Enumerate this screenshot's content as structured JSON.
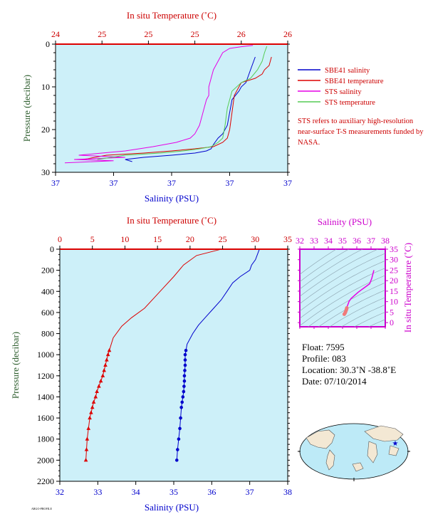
{
  "colors": {
    "background": "#cdf0f9",
    "salinity": "#0000cc",
    "temperature": "#dd0000",
    "sts_salinity": "#e600e6",
    "sts_temperature": "#55cc55",
    "ts_axis": "#cc00cc",
    "pressure_label": "#2e5e2e"
  },
  "info": {
    "float": "Float:  7595",
    "profile": "Profile:  083",
    "location": "Location:  30.3˚N  -38.8˚E",
    "date": "Date:  07/10/2014"
  },
  "note": "STS refers to auxiliary high-resolution near-surface T-S measurements funded by NASA.",
  "chart_data": [
    {
      "type": "line",
      "ylabel": "Pressure (decibar)",
      "xlabel": "Salinity (PSU)",
      "x2label": "In situ Temperature (˚C)",
      "ylim": [
        30,
        0
      ],
      "yticks": [
        "0",
        "10",
        "20",
        "30"
      ],
      "xticks": [
        "37",
        "37",
        "37",
        "37",
        "37"
      ],
      "x2ticks": [
        "24",
        "25",
        "25",
        "25",
        "26",
        "26"
      ],
      "xlim": [
        0,
        1
      ],
      "legend": [
        "SBE41 salinity",
        "SBE41 temperature",
        "STS salinity",
        "STS temperature"
      ],
      "series": [
        {
          "name": "SBE41 salinity",
          "color": "#0000cc",
          "x": [
            0.86,
            0.84,
            0.82,
            0.8,
            0.79,
            0.76,
            0.75,
            0.74,
            0.72,
            0.7,
            0.68,
            0.67,
            0.65,
            0.6,
            0.5,
            0.38,
            0.3,
            0.33
          ],
          "y": [
            3,
            6,
            9,
            10,
            11,
            13,
            16,
            19,
            21,
            22,
            23.5,
            24.5,
            25,
            25.5,
            26,
            26.5,
            27,
            27.5
          ]
        },
        {
          "name": "SBE41 temperature",
          "color": "#dd0000",
          "x": [
            0.93,
            0.92,
            0.9,
            0.89,
            0.86,
            0.8,
            0.77,
            0.76,
            0.75,
            0.74,
            0.72,
            0.68,
            0.6,
            0.5,
            0.38,
            0.22,
            0.12
          ],
          "y": [
            3,
            5,
            6,
            7,
            8,
            9,
            12,
            16,
            20,
            22,
            23,
            24,
            24.5,
            25,
            25.5,
            26,
            27
          ]
        },
        {
          "name": "STS salinity",
          "color": "#e600e6",
          "x": [
            0.85,
            0.8,
            0.75,
            0.72,
            0.7,
            0.68,
            0.67,
            0.66,
            0.66,
            0.65,
            0.64,
            0.63,
            0.62,
            0.6,
            0.58,
            0.52,
            0.42,
            0.3,
            0.2,
            0.1,
            0.3,
            0.08,
            0.25,
            0.04
          ],
          "y": [
            0.3,
            0.6,
            1,
            2,
            4,
            6,
            8,
            10,
            12,
            13,
            15,
            17,
            19,
            21,
            22,
            23,
            24,
            25,
            25.5,
            26,
            26.5,
            27,
            27.3,
            27.8
          ]
        },
        {
          "name": "STS temperature",
          "color": "#55cc55",
          "x": [
            0.91,
            0.9,
            0.89,
            0.87,
            0.84,
            0.8,
            0.76,
            0.74,
            0.73,
            0.72,
            0.7,
            0.67,
            0.62,
            0.55,
            0.45,
            0.3,
            0.18
          ],
          "y": [
            0.5,
            2,
            4,
            6,
            8,
            9,
            11,
            15,
            19,
            22,
            23,
            24,
            24.5,
            25,
            25.5,
            26,
            27
          ]
        }
      ]
    },
    {
      "type": "line",
      "ylabel": "Pressure (decibar)",
      "xlabel": "Salinity (PSU)",
      "x2label": "In situ Temperature (˚C)",
      "xlim": [
        32,
        38
      ],
      "x2lim": [
        0,
        35
      ],
      "ylim": [
        2200,
        0
      ],
      "xticks": [
        "32",
        "33",
        "34",
        "35",
        "36",
        "37",
        "38"
      ],
      "x2ticks": [
        "0",
        "5",
        "10",
        "15",
        "20",
        "25",
        "30",
        "35"
      ],
      "yticks": [
        "0",
        "200",
        "400",
        "600",
        "800",
        "1000",
        "1200",
        "1400",
        "1600",
        "1800",
        "2000",
        "2200"
      ],
      "series": [
        {
          "name": "Salinity",
          "color": "#0000cc",
          "x": [
            37.25,
            37.15,
            37.05,
            37.0,
            36.75,
            36.55,
            36.4,
            36.25,
            36.05,
            35.85,
            35.65,
            35.5,
            35.35,
            35.32,
            35.3,
            35.3,
            35.3,
            35.29,
            35.28,
            35.28,
            35.27,
            35.26,
            35.24,
            35.22,
            35.2,
            35.18,
            35.16,
            35.13,
            35.1,
            35.08
          ],
          "y": [
            5,
            100,
            150,
            200,
            260,
            320,
            400,
            480,
            560,
            640,
            720,
            800,
            900,
            960,
            1000,
            1050,
            1100,
            1150,
            1200,
            1250,
            1300,
            1350,
            1400,
            1450,
            1500,
            1600,
            1700,
            1800,
            1900,
            2000
          ]
        },
        {
          "name": "Temperature",
          "color": "#dd0000",
          "x": [
            24.5,
            21.0,
            19.0,
            17.5,
            16.0,
            14.5,
            13.0,
            11.0,
            9.5,
            8.2,
            7.8,
            7.6,
            7.4,
            7.2,
            7.0,
            6.8,
            6.6,
            6.3,
            6.0,
            5.7,
            5.5,
            5.2,
            5.0,
            4.8,
            4.6,
            4.4,
            4.2,
            4.1,
            4.0
          ],
          "y": [
            5,
            60,
            150,
            260,
            360,
            460,
            560,
            650,
            730,
            840,
            920,
            960,
            1000,
            1050,
            1100,
            1150,
            1200,
            1250,
            1300,
            1350,
            1400,
            1450,
            1500,
            1550,
            1600,
            1700,
            1800,
            1900,
            2000
          ]
        }
      ]
    },
    {
      "type": "line",
      "x2label": "Salinity (PSU)",
      "ylabel": "In situ Temperature (˚C)",
      "xlim": [
        32,
        38
      ],
      "ylim": [
        -2,
        35
      ],
      "xticks": [
        "32",
        "33",
        "34",
        "35",
        "36",
        "37",
        "38"
      ],
      "yticks": [
        "0",
        "5",
        "10",
        "15",
        "20",
        "25",
        "30",
        "35"
      ],
      "series": [
        {
          "name": "T-S",
          "color": "#e600e6",
          "x": [
            37.2,
            37.05,
            36.9,
            36.7,
            36.4,
            36.1,
            35.85,
            35.6,
            35.45,
            35.4,
            35.35,
            35.32,
            35.3,
            35.28,
            35.26,
            35.22,
            35.18,
            35.12
          ],
          "y": [
            25,
            21,
            18.5,
            17.5,
            16,
            14.5,
            13,
            11.5,
            10,
            9,
            8.2,
            7.5,
            7.0,
            6.4,
            6.0,
            5.2,
            4.6,
            4.0
          ]
        }
      ]
    }
  ]
}
